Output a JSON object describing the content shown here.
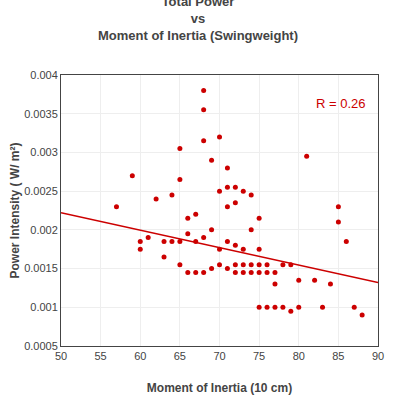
{
  "chart_data": {
    "type": "scatter",
    "title": "Total Power\nvs\nMoment of Inertia (Swingweight)",
    "xlabel": "Moment of Inertia (10 cm)",
    "ylabel": "Power Intensity ( W/ m²)",
    "xlim": [
      50,
      90
    ],
    "ylim": [
      0.0005,
      0.004
    ],
    "xticks": [
      50,
      55,
      60,
      65,
      70,
      75,
      80,
      85,
      90
    ],
    "yticks": [
      0.0005,
      0.001,
      0.0015,
      0.002,
      0.0025,
      0.003,
      0.0035,
      0.004
    ],
    "grid": true,
    "series": [
      {
        "type": "scatter",
        "marker": "circle",
        "color": "#cc0000",
        "x": [
          57,
          59,
          60,
          60,
          61,
          62,
          63,
          63,
          64,
          64,
          65,
          65,
          65,
          65,
          66,
          66,
          66,
          67,
          67,
          67,
          68,
          68,
          68,
          68,
          68,
          69,
          69,
          69,
          70,
          70,
          70,
          70,
          71,
          71,
          71,
          71,
          71,
          72,
          72,
          72,
          72,
          72,
          73,
          73,
          73,
          73,
          74,
          74,
          74,
          74,
          75,
          75,
          75,
          75,
          75,
          76,
          76,
          76,
          77,
          77,
          77,
          78,
          78,
          79,
          79,
          80,
          80,
          81,
          82,
          83,
          84,
          85,
          85,
          86,
          87,
          88
        ],
        "values": [
          0.0023,
          0.0027,
          0.00185,
          0.00175,
          0.0019,
          0.0024,
          0.00165,
          0.00185,
          0.00245,
          0.00185,
          0.00305,
          0.00155,
          0.00185,
          0.00265,
          0.00195,
          0.00215,
          0.00145,
          0.0022,
          0.00185,
          0.00145,
          0.0038,
          0.00355,
          0.00315,
          0.0019,
          0.00145,
          0.0029,
          0.002,
          0.0015,
          0.0032,
          0.0025,
          0.00175,
          0.00155,
          0.0028,
          0.00255,
          0.0023,
          0.00185,
          0.0015,
          0.00255,
          0.00235,
          0.0018,
          0.00155,
          0.00145,
          0.0025,
          0.00175,
          0.00155,
          0.00145,
          0.00245,
          0.002,
          0.00155,
          0.00145,
          0.00215,
          0.00175,
          0.00155,
          0.00145,
          0.001,
          0.00145,
          0.00155,
          0.001,
          0.00145,
          0.0013,
          0.001,
          0.00155,
          0.001,
          0.00155,
          0.00095,
          0.00135,
          0.001,
          0.00295,
          0.00135,
          0.001,
          0.0013,
          0.0023,
          0.0021,
          0.00185,
          0.001,
          0.0009
        ]
      },
      {
        "type": "line",
        "color": "#cc0000",
        "x": [
          50,
          90
        ],
        "values": [
          0.00222,
          0.00132
        ]
      }
    ],
    "annotations": [
      {
        "text": "R = 0.26",
        "color": "#cc0000"
      }
    ]
  }
}
